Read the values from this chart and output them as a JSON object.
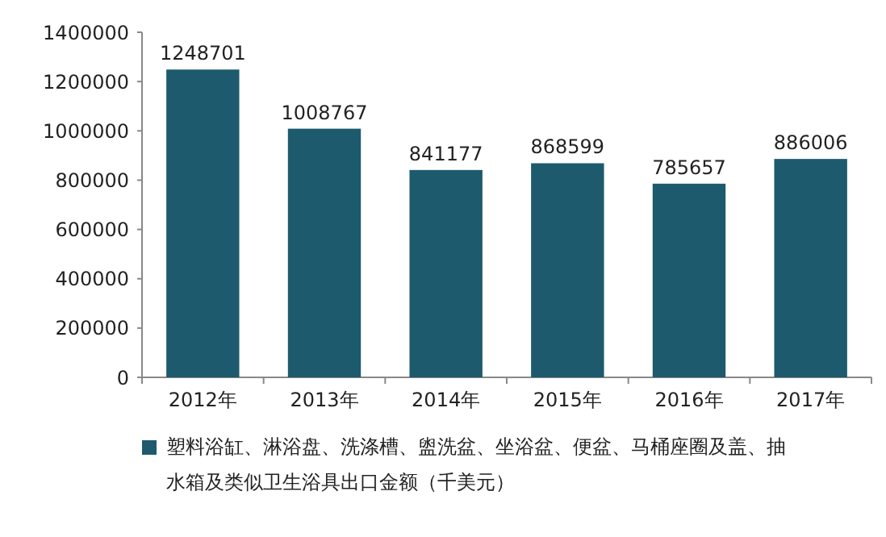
{
  "chart_data": {
    "type": "bar",
    "categories": [
      "2012年",
      "2013年",
      "2014年",
      "2015年",
      "2016年",
      "2017年"
    ],
    "series": [
      {
        "name": "塑料浴缸、淋浴盘、洗涤槽、盥洗盆、坐浴盆、便盆、马桶座圈及盖、抽水箱及类似卫生浴具出口金额（千美元）",
        "color": "#1d5a6e",
        "values": [
          1248701,
          1008767,
          841177,
          868599,
          785657,
          886006
        ]
      }
    ],
    "ylim": [
      0,
      1400000
    ],
    "yticks": [
      0,
      200000,
      400000,
      600000,
      800000,
      1000000,
      1200000,
      1400000
    ],
    "data_labels": true,
    "grid": false,
    "legend": "bottom"
  }
}
